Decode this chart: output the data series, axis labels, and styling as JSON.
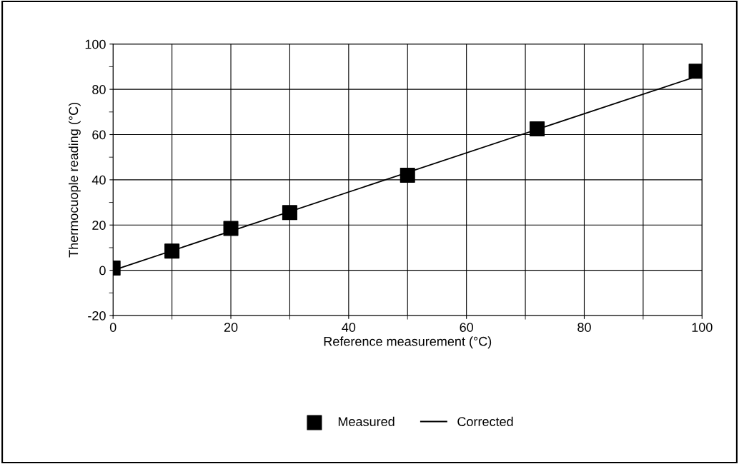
{
  "chart_data": {
    "type": "scatter",
    "xlabel": "Reference measurement (°C)",
    "ylabel": "Thermocuople reading (°C)",
    "series": [
      {
        "name": "Measured",
        "color": "#000000",
        "marker": "square",
        "x": [
          0,
          10,
          20,
          30,
          50,
          72,
          99
        ],
        "values": [
          1,
          8.5,
          18.5,
          25.5,
          42,
          62.5,
          88
        ]
      },
      {
        "name": "Corrected",
        "type": "line",
        "color": "#000000",
        "marker": "none",
        "line_style": "solid",
        "x": [
          0,
          100
        ],
        "values": [
          0,
          86.5
        ]
      }
    ],
    "xlim": [
      0,
      100
    ],
    "ylim": [
      -20,
      100
    ],
    "xticks": [
      0,
      {
        "value": 10,
        "label": null
      },
      20,
      {
        "value": 30,
        "label": null
      },
      40,
      {
        "value": 50,
        "label": null
      },
      60,
      {
        "value": 70,
        "label": null
      },
      80,
      {
        "value": 90,
        "label": null
      },
      100
    ],
    "yticks": [
      -20,
      {
        "value": -10,
        "label": null
      },
      0,
      {
        "value": 10,
        "label": null
      },
      20,
      {
        "value": 30,
        "label": null
      },
      40,
      {
        "value": 50,
        "label": null
      },
      60,
      {
        "value": 70,
        "label": null
      },
      80,
      {
        "value": 90,
        "label": null
      },
      100
    ],
    "grid": true,
    "legend": "bottom"
  }
}
